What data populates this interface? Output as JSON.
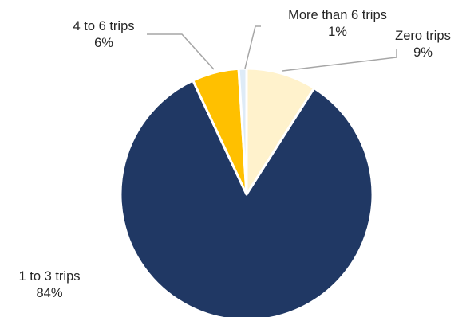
{
  "chart_data": {
    "type": "pie",
    "start_angle_deg": 0,
    "direction": "clockwise",
    "slices": [
      {
        "label": "Zero trips",
        "value": 9,
        "display": "9%",
        "color": "#FFF2CC"
      },
      {
        "label": "1 to 3 trips",
        "value": 84,
        "display": "84%",
        "color": "#203864"
      },
      {
        "label": "4 to 6 trips",
        "value": 6,
        "display": "6%",
        "color": "#FFC000"
      },
      {
        "label": "More than 6 trips",
        "value": 1,
        "display": "1%",
        "color": "#DEEBF7"
      }
    ],
    "title": "",
    "legend": "none",
    "data_labels": "outside with leader lines"
  }
}
